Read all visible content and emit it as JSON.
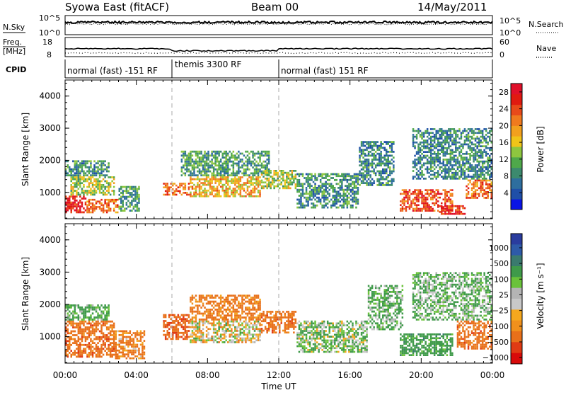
{
  "header": {
    "station": "Syowa East (fitACF)",
    "beam": "Beam 00",
    "date": "14/May/2011"
  },
  "panels": {
    "nsky": {
      "label": "N.Sky",
      "tick_top": "10^5",
      "tick_bottom": "10^0"
    },
    "nsearch": {
      "label": "N.Search",
      "tick_top": "10^5",
      "tick_bottom": "10^0"
    },
    "freq": {
      "label_1": "Freq.",
      "label_2": "[MHz]",
      "tick_top": "18",
      "tick_bottom": "8"
    },
    "nave": {
      "label": "Nave",
      "tick_top": "60",
      "tick_bottom": "0"
    },
    "cpid": {
      "label": "CPID",
      "segments": [
        {
          "label": "normal (fast) -151 RF",
          "start_hour": 0,
          "end_hour": 6
        },
        {
          "label": "themis 3300 RF",
          "start_hour": 6,
          "end_hour": 12
        },
        {
          "label": "normal (fast) 151 RF",
          "start_hour": 12,
          "end_hour": 24
        }
      ]
    }
  },
  "colors": {
    "power_scale": [
      "#0a14e6",
      "#1f4fa8",
      "#2e6e9e",
      "#3c8a6e",
      "#4fa84a",
      "#8ec63f",
      "#f0c419",
      "#f2a01e",
      "#f07a1e",
      "#e84a1a",
      "#e01a10",
      "#e0102a"
    ],
    "velocity_scale": [
      "#2a3c9e",
      "#2e5aa8",
      "#3a7a6e",
      "#3f9a4a",
      "#6ac23a",
      "#b4b4b4",
      "#c8c8c8",
      "#f5a81e",
      "#f0901c",
      "#e8701a",
      "#e03a14",
      "#d80a0a"
    ]
  },
  "chart_data": [
    {
      "type": "heatmap",
      "name_id": "power",
      "xlabel": "",
      "ylabel": "Slant Range [km]",
      "xlim": [
        0,
        24
      ],
      "ylim": [
        180,
        4500
      ],
      "yticks": [
        "1000",
        "2000",
        "3000",
        "4000"
      ],
      "colorbar": {
        "label": "Power [dB]",
        "ticks": [
          "4",
          "8",
          "12",
          "16",
          "20",
          "24",
          "28"
        ],
        "range": [
          0,
          30
        ]
      },
      "regions": [
        {
          "t0": 0.0,
          "t1": 1.2,
          "r0": 350,
          "r1": 900,
          "value": 27
        },
        {
          "t0": 1.2,
          "t1": 3.0,
          "r0": 350,
          "r1": 800,
          "value": 22
        },
        {
          "t0": 0.3,
          "t1": 2.8,
          "r0": 900,
          "r1": 1500,
          "value": 14
        },
        {
          "t0": 0.0,
          "t1": 2.5,
          "r0": 1500,
          "r1": 2000,
          "value": 9
        },
        {
          "t0": 3.0,
          "t1": 4.2,
          "r0": 400,
          "r1": 1200,
          "value": 10
        },
        {
          "t0": 5.5,
          "t1": 7.0,
          "r0": 900,
          "r1": 1300,
          "value": 22
        },
        {
          "t0": 7.0,
          "t1": 11.0,
          "r0": 850,
          "r1": 1500,
          "value": 18
        },
        {
          "t0": 6.5,
          "t1": 11.5,
          "r0": 1500,
          "r1": 2300,
          "value": 10
        },
        {
          "t0": 11.0,
          "t1": 13.0,
          "r0": 1100,
          "r1": 1700,
          "value": 14
        },
        {
          "t0": 13.0,
          "t1": 16.5,
          "r0": 500,
          "r1": 1600,
          "value": 9
        },
        {
          "t0": 16.5,
          "t1": 18.5,
          "r0": 1200,
          "r1": 2600,
          "value": 8
        },
        {
          "t0": 18.8,
          "t1": 21.8,
          "r0": 400,
          "r1": 1100,
          "value": 24
        },
        {
          "t0": 21.0,
          "t1": 22.5,
          "r0": 300,
          "r1": 600,
          "value": 26
        },
        {
          "t0": 22.5,
          "t1": 24.0,
          "r0": 800,
          "r1": 1400,
          "value": 22
        },
        {
          "t0": 19.5,
          "t1": 24.0,
          "r0": 1400,
          "r1": 3000,
          "value": 8
        }
      ]
    },
    {
      "type": "heatmap",
      "name_id": "velocity",
      "xlabel": "Time UT",
      "ylabel": "Slant Range [km]",
      "xlim": [
        0,
        24
      ],
      "ylim": [
        180,
        4500
      ],
      "xticks": [
        "00:00",
        "04:00",
        "08:00",
        "12:00",
        "16:00",
        "20:00",
        "00:00"
      ],
      "yticks": [
        "1000",
        "2000",
        "3000",
        "4000"
      ],
      "colorbar": {
        "label": "Velocity [m s⁻¹]",
        "ticks": [
          "1000",
          "500",
          "100",
          "25",
          "−25",
          "−100",
          "−500",
          "−1000"
        ]
      },
      "regions": [
        {
          "t0": 0.0,
          "t1": 2.8,
          "r0": 350,
          "r1": 1500,
          "value": -200
        },
        {
          "t0": 0.0,
          "t1": 2.5,
          "r0": 1500,
          "r1": 2000,
          "value": 150
        },
        {
          "t0": 2.8,
          "t1": 4.5,
          "r0": 300,
          "r1": 1200,
          "value": -120
        },
        {
          "t0": 5.5,
          "t1": 7.0,
          "r0": 900,
          "r1": 1700,
          "value": -250
        },
        {
          "t0": 7.0,
          "t1": 11.0,
          "r0": 800,
          "r1": 1500,
          "value": 0
        },
        {
          "t0": 7.0,
          "t1": 11.0,
          "r0": 1500,
          "r1": 2300,
          "value": -150
        },
        {
          "t0": 11.0,
          "t1": 13.0,
          "r0": 1100,
          "r1": 1800,
          "value": -200
        },
        {
          "t0": 13.0,
          "t1": 17.0,
          "r0": 500,
          "r1": 1500,
          "value": 80
        },
        {
          "t0": 17.0,
          "t1": 19.0,
          "r0": 1200,
          "r1": 2600,
          "value": 120
        },
        {
          "t0": 18.8,
          "t1": 21.8,
          "r0": 400,
          "r1": 1100,
          "value": 200
        },
        {
          "t0": 22.0,
          "t1": 24.0,
          "r0": 600,
          "r1": 1500,
          "value": -200
        },
        {
          "t0": 19.5,
          "t1": 24.0,
          "r0": 1500,
          "r1": 3000,
          "value": 100
        }
      ]
    }
  ]
}
